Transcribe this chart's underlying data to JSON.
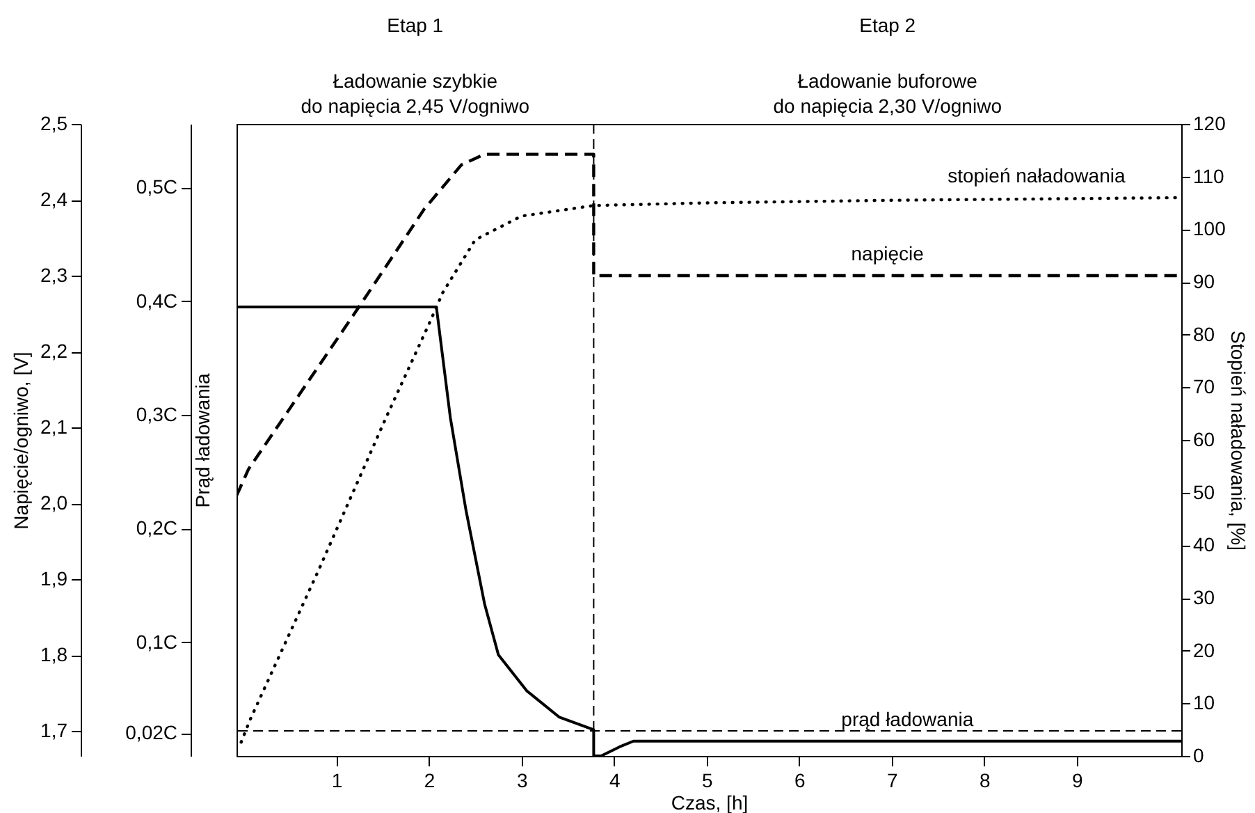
{
  "chart_data": {
    "type": "line",
    "xlabel": "Czas, [h]",
    "ylabel": "Napięcie/ogniwo,  [V]",
    "y2label": "Stopień naładowania,  [%]",
    "y3label": "Prąd ładowania",
    "xlim": [
      -0.08,
      10.13
    ],
    "xticks": [
      1,
      2,
      3,
      4,
      5,
      6,
      7,
      8,
      9
    ],
    "ylim": [
      1.667,
      2.5
    ],
    "yticks": [
      {
        "value": 1.7,
        "label": "1,7"
      },
      {
        "value": 1.8,
        "label": "1,8"
      },
      {
        "value": 1.9,
        "label": "1,9"
      },
      {
        "value": 2.0,
        "label": "2,0"
      },
      {
        "value": 2.1,
        "label": "2,1"
      },
      {
        "value": 2.2,
        "label": "2,2"
      },
      {
        "value": 2.3,
        "label": "2,3"
      },
      {
        "value": 2.4,
        "label": "2,4"
      },
      {
        "value": 2.5,
        "label": "2,5"
      }
    ],
    "y2lim": [
      0,
      120
    ],
    "y2ticks": [
      0,
      10,
      20,
      30,
      40,
      50,
      60,
      70,
      80,
      90,
      100,
      110,
      120
    ],
    "y3lim": [
      0,
      0.556
    ],
    "y3ticks": [
      {
        "value": 0.02,
        "label": "0,02C"
      },
      {
        "value": 0.1,
        "label": "0,1C"
      },
      {
        "value": 0.2,
        "label": "0,2C"
      },
      {
        "value": 0.3,
        "label": "0,3C"
      },
      {
        "value": 0.4,
        "label": "0,4C"
      },
      {
        "value": 0.5,
        "label": "0,5C"
      }
    ],
    "series": [
      {
        "name": "napięcie",
        "color": "#000000",
        "axis": "y",
        "line_style": "dashed",
        "x": [
          -0.08,
          0.05,
          1.25,
          1.95,
          2.35,
          2.6,
          2.9,
          3.78,
          3.78,
          10.13
        ],
        "values": [
          2.01,
          2.045,
          2.26,
          2.388,
          2.446,
          2.46,
          2.46,
          2.46,
          2.3,
          2.3
        ]
      },
      {
        "name": "stopień naładowania",
        "color": "#000000",
        "axis": "y2",
        "line_style": "dotted",
        "x": [
          -0.03,
          0.07,
          0.8,
          1.53,
          2.0,
          2.15,
          2.5,
          3.0,
          3.78,
          5,
          7,
          10.13
        ],
        "values": [
          2.6,
          7,
          35,
          64,
          82,
          88,
          98,
          102.5,
          104.5,
          105,
          105.5,
          106
        ]
      },
      {
        "name": "prąd ładowania",
        "color": "#000000",
        "axis": "y3",
        "line_style": "solid",
        "x": [
          -0.08,
          2.08,
          2.23,
          2.4,
          2.6,
          2.75,
          3.06,
          3.41,
          3.78,
          3.78,
          3.86,
          4.06,
          4.21,
          10.13
        ],
        "values": [
          0.395,
          0.395,
          0.298,
          0.216,
          0.134,
          0.089,
          0.057,
          0.034,
          0.023,
          0,
          0,
          0.008,
          0.013,
          0.013
        ]
      }
    ],
    "ref_lines": [
      {
        "axis": "x",
        "value": 3.78,
        "color": "#000000",
        "line_style": "dashed"
      },
      {
        "axis": "y",
        "value": 1.7,
        "color": "#000000",
        "line_style": "dashed"
      }
    ],
    "annotations": [
      "Etap 1",
      "Etap 2",
      "Ładowanie szybkie\ndo napięcia 2,45 V/ogniwo",
      "Ładowanie buforowe\ndo napięcia 2,30 V/ogniwo"
    ]
  }
}
